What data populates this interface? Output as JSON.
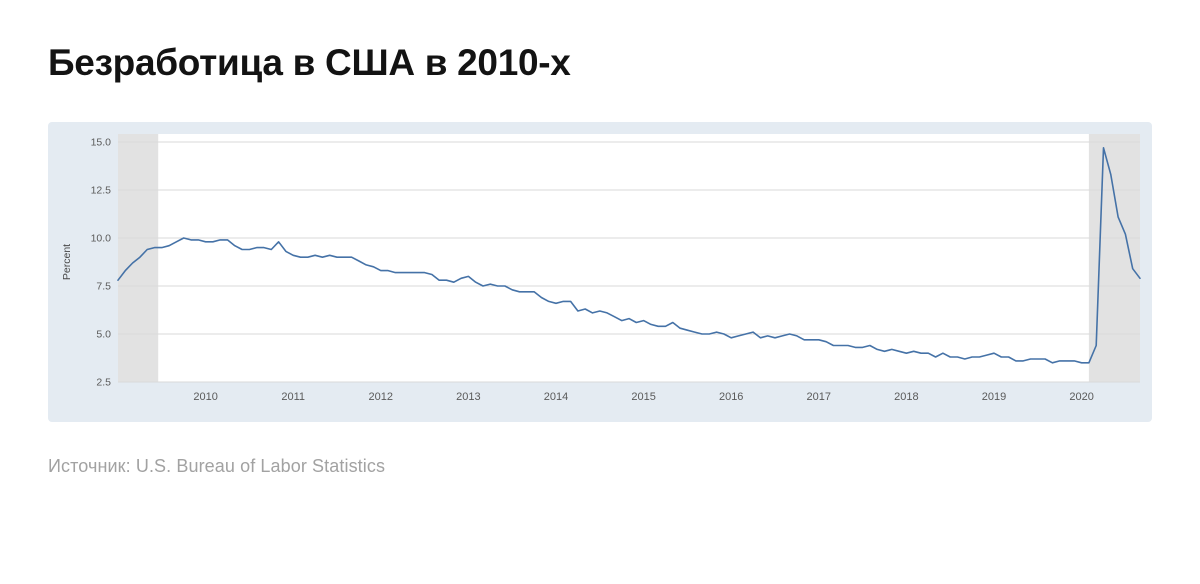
{
  "page": {
    "title": "Безработица в США в 2010-х",
    "source": "Источник: U.S. Bureau of Labor Statistics"
  },
  "chart_data": {
    "type": "line",
    "title": "Безработица в США в 2010-х",
    "ylabel": "Percent",
    "x_start": "2009-01",
    "frequency": "monthly",
    "values": [
      7.8,
      8.3,
      8.7,
      9.0,
      9.4,
      9.5,
      9.5,
      9.6,
      9.8,
      10.0,
      9.9,
      9.9,
      9.8,
      9.8,
      9.9,
      9.9,
      9.6,
      9.4,
      9.4,
      9.5,
      9.5,
      9.4,
      9.8,
      9.3,
      9.1,
      9.0,
      9.0,
      9.1,
      9.0,
      9.1,
      9.0,
      9.0,
      9.0,
      8.8,
      8.6,
      8.5,
      8.3,
      8.3,
      8.2,
      8.2,
      8.2,
      8.2,
      8.2,
      8.1,
      7.8,
      7.8,
      7.7,
      7.9,
      8.0,
      7.7,
      7.5,
      7.6,
      7.5,
      7.5,
      7.3,
      7.2,
      7.2,
      7.2,
      6.9,
      6.7,
      6.6,
      6.7,
      6.7,
      6.2,
      6.3,
      6.1,
      6.2,
      6.1,
      5.9,
      5.7,
      5.8,
      5.6,
      5.7,
      5.5,
      5.4,
      5.4,
      5.6,
      5.3,
      5.2,
      5.1,
      5.0,
      5.0,
      5.1,
      5.0,
      4.8,
      4.9,
      5.0,
      5.1,
      4.8,
      4.9,
      4.8,
      4.9,
      5.0,
      4.9,
      4.7,
      4.7,
      4.7,
      4.6,
      4.4,
      4.4,
      4.4,
      4.3,
      4.3,
      4.4,
      4.2,
      4.1,
      4.2,
      4.1,
      4.0,
      4.1,
      4.0,
      4.0,
      3.8,
      4.0,
      3.8,
      3.8,
      3.7,
      3.8,
      3.8,
      3.9,
      4.0,
      3.8,
      3.8,
      3.6,
      3.6,
      3.7,
      3.7,
      3.7,
      3.5,
      3.6,
      3.6,
      3.6,
      3.5,
      3.5,
      4.4,
      14.7,
      13.3,
      11.1,
      10.2,
      8.4,
      7.9
    ],
    "ylim": [
      2.5,
      15.0
    ],
    "yticks": [
      "2.5",
      "5.0",
      "7.5",
      "10.0",
      "12.5",
      "15.0"
    ],
    "xticks": [
      {
        "label": "2010",
        "month_index": 12
      },
      {
        "label": "2011",
        "month_index": 24
      },
      {
        "label": "2012",
        "month_index": 36
      },
      {
        "label": "2013",
        "month_index": 48
      },
      {
        "label": "2014",
        "month_index": 60
      },
      {
        "label": "2015",
        "month_index": 72
      },
      {
        "label": "2016",
        "month_index": 84
      },
      {
        "label": "2017",
        "month_index": 96
      },
      {
        "label": "2018",
        "month_index": 108
      },
      {
        "label": "2019",
        "month_index": 120
      },
      {
        "label": "2020",
        "month_index": 132
      }
    ],
    "grid": true,
    "legend": "none",
    "line_color": "#4572a7",
    "plot_bg": "#ffffff",
    "card_bg": "#e4ebf2",
    "grid_color": "#d9d9d9",
    "band_color": "#e2e2e2",
    "tick_label_color": "#5a5a5a",
    "recession_bands": [
      {
        "name": "2009",
        "start_index": 0,
        "end_index": 5.5
      },
      {
        "name": "2020",
        "start_index": 133,
        "end_index": 140
      }
    ]
  }
}
